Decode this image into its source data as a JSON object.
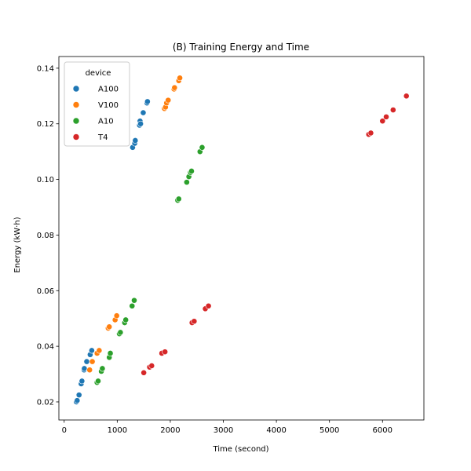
{
  "chart_data": {
    "type": "scatter",
    "title": "(B) Training Energy and Time",
    "xlabel": "Time (second)",
    "ylabel": "Energy (kW·h)",
    "xlim": [
      -100,
      6780
    ],
    "ylim": [
      0.0135,
      0.1442
    ],
    "xticks": [
      0,
      1000,
      2000,
      3000,
      4000,
      5000,
      6000
    ],
    "yticks": [
      0.02,
      0.04,
      0.06,
      0.08,
      0.1,
      0.12,
      0.14
    ],
    "ytick_labels": [
      "0.02",
      "0.04",
      "0.06",
      "0.08",
      "0.10",
      "0.12",
      "0.14"
    ],
    "grid": false,
    "legend": {
      "title": "device",
      "placement": "top-left"
    },
    "series": [
      {
        "name": "A100",
        "color": "#1f77b4",
        "points": [
          [
            230,
            0.02
          ],
          [
            245,
            0.0205
          ],
          [
            280,
            0.0225
          ],
          [
            320,
            0.0265
          ],
          [
            335,
            0.0275
          ],
          [
            375,
            0.0315
          ],
          [
            380,
            0.032
          ],
          [
            425,
            0.0345
          ],
          [
            490,
            0.037
          ],
          [
            520,
            0.0385
          ],
          [
            1290,
            0.1115
          ],
          [
            1330,
            0.113
          ],
          [
            1340,
            0.114
          ],
          [
            1420,
            0.1195
          ],
          [
            1430,
            0.121
          ],
          [
            1440,
            0.12
          ],
          [
            1490,
            0.124
          ],
          [
            1560,
            0.1275
          ],
          [
            1570,
            0.128
          ]
        ]
      },
      {
        "name": "V100",
        "color": "#ff7f0e",
        "points": [
          [
            480,
            0.0315
          ],
          [
            530,
            0.0345
          ],
          [
            620,
            0.0375
          ],
          [
            660,
            0.0385
          ],
          [
            830,
            0.0465
          ],
          [
            850,
            0.047
          ],
          [
            960,
            0.0495
          ],
          [
            990,
            0.051
          ],
          [
            1890,
            0.1255
          ],
          [
            1910,
            0.126
          ],
          [
            1930,
            0.1275
          ],
          [
            1960,
            0.1285
          ],
          [
            2070,
            0.1325
          ],
          [
            2080,
            0.133
          ],
          [
            2160,
            0.1355
          ],
          [
            2180,
            0.1365
          ]
        ]
      },
      {
        "name": "A10",
        "color": "#2ca02c",
        "points": [
          [
            620,
            0.027
          ],
          [
            640,
            0.0275
          ],
          [
            700,
            0.031
          ],
          [
            720,
            0.032
          ],
          [
            850,
            0.036
          ],
          [
            870,
            0.0375
          ],
          [
            1040,
            0.0445
          ],
          [
            1060,
            0.045
          ],
          [
            1140,
            0.0485
          ],
          [
            1160,
            0.0495
          ],
          [
            1280,
            0.0545
          ],
          [
            1320,
            0.0565
          ],
          [
            2140,
            0.0925
          ],
          [
            2160,
            0.093
          ],
          [
            2310,
            0.099
          ],
          [
            2350,
            0.101
          ],
          [
            2380,
            0.1025
          ],
          [
            2400,
            0.103
          ],
          [
            2560,
            0.11
          ],
          [
            2600,
            0.1115
          ]
        ]
      },
      {
        "name": "T4",
        "color": "#d62728",
        "points": [
          [
            1500,
            0.0305
          ],
          [
            1610,
            0.0325
          ],
          [
            1650,
            0.033
          ],
          [
            1840,
            0.0375
          ],
          [
            1900,
            0.038
          ],
          [
            2410,
            0.0485
          ],
          [
            2450,
            0.049
          ],
          [
            2660,
            0.0535
          ],
          [
            2720,
            0.0545
          ],
          [
            5740,
            0.1162
          ],
          [
            5780,
            0.1167
          ],
          [
            6000,
            0.121
          ],
          [
            6070,
            0.1225
          ],
          [
            6200,
            0.125
          ],
          [
            6450,
            0.13
          ]
        ]
      }
    ]
  }
}
